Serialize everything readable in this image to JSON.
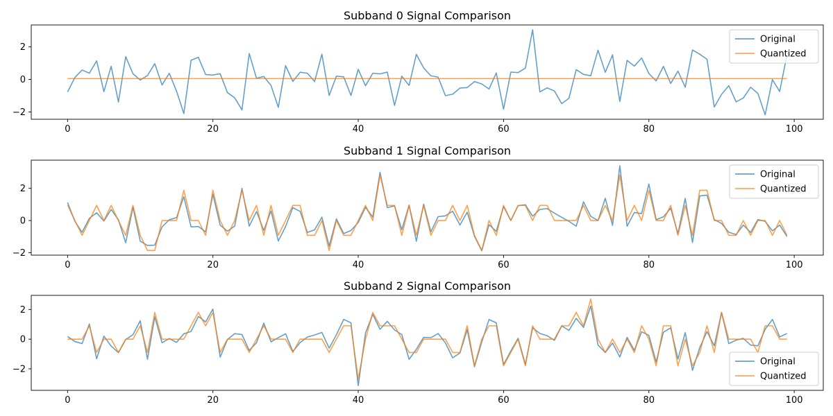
{
  "colors": {
    "original": "#1f77b4",
    "quantized": "#ff7f0e"
  },
  "chart_data": [
    {
      "type": "line",
      "title": "Subband 0 Signal Comparison",
      "xlabel": "",
      "ylabel": "",
      "xlim": [
        -5,
        104
      ],
      "ylim": [
        -2.45,
        3.35
      ],
      "xticks": [
        0,
        20,
        40,
        60,
        80,
        100
      ],
      "yticks": [
        -2,
        0,
        2
      ],
      "legend": "upper right",
      "series": [
        {
          "name": "Original",
          "values": [
            -0.77,
            0.11,
            0.58,
            0.38,
            1.14,
            -0.75,
            0.81,
            -1.39,
            1.4,
            0.35,
            -0.04,
            0.24,
            0.97,
            -0.34,
            0.38,
            -0.73,
            -2.1,
            1.18,
            1.36,
            0.3,
            0.27,
            0.35,
            -0.81,
            -1.13,
            -1.87,
            1.59,
            0.07,
            0.18,
            -0.37,
            -1.72,
            0.85,
            -0.12,
            0.44,
            0.38,
            -0.13,
            1.55,
            -0.99,
            0.2,
            0.16,
            -0.99,
            0.62,
            -0.39,
            0.38,
            0.34,
            0.45,
            -1.6,
            0.2,
            -0.37,
            1.54,
            0.71,
            0.22,
            0.14,
            -1.0,
            -0.91,
            -0.53,
            -0.5,
            -0.13,
            -0.28,
            -0.59,
            0.4,
            -1.83,
            0.45,
            0.42,
            0.69,
            3.05,
            -0.77,
            -0.52,
            -0.71,
            -1.49,
            -1.16,
            0.6,
            0.31,
            0.23,
            1.8,
            0.44,
            1.51,
            -1.36,
            1.17,
            0.82,
            1.32,
            0.36,
            -0.09,
            0.8,
            -0.25,
            0.51,
            -0.48,
            1.81,
            1.55,
            1.24,
            -1.7,
            -0.92,
            -0.38,
            -1.38,
            -1.14,
            -0.48,
            -0.86,
            -2.18,
            -0.01,
            -0.74,
            1.5
          ]
        },
        {
          "name": "Quantized",
          "values": [
            0.05,
            0.05,
            0.05,
            0.05,
            0.05,
            0.05,
            0.05,
            0.05,
            0.05,
            0.05,
            0.05,
            0.05,
            0.05,
            0.05,
            0.05,
            0.05,
            0.05,
            0.05,
            0.05,
            0.05,
            0.05,
            0.05,
            0.05,
            0.05,
            0.05,
            0.05,
            0.05,
            0.05,
            0.05,
            0.05,
            0.05,
            0.05,
            0.05,
            0.05,
            0.05,
            0.05,
            0.05,
            0.05,
            0.05,
            0.05,
            0.05,
            0.05,
            0.05,
            0.05,
            0.05,
            0.05,
            0.05,
            0.05,
            0.05,
            0.05,
            0.05,
            0.05,
            0.05,
            0.05,
            0.05,
            0.05,
            0.05,
            0.05,
            0.05,
            0.05,
            0.05,
            0.05,
            0.05,
            0.05,
            0.05,
            0.05,
            0.05,
            0.05,
            0.05,
            0.05,
            0.05,
            0.05,
            0.05,
            0.05,
            0.05,
            0.05,
            0.05,
            0.05,
            0.05,
            0.05,
            0.05,
            0.05,
            0.05,
            0.05,
            0.05,
            0.05,
            0.05,
            0.05,
            0.05,
            0.05,
            0.05,
            0.05,
            0.05,
            0.05,
            0.05,
            0.05,
            0.05,
            0.05,
            0.05,
            0.05
          ]
        }
      ]
    },
    {
      "type": "line",
      "title": "Subband 1 Signal Comparison",
      "xlabel": "",
      "ylabel": "",
      "xlim": [
        -5,
        104
      ],
      "ylim": [
        -2.15,
        3.75
      ],
      "xticks": [
        0,
        20,
        40,
        60,
        80,
        100
      ],
      "yticks": [
        -2,
        0,
        2
      ],
      "legend": "upper right",
      "series": [
        {
          "name": "Original",
          "values": [
            1.12,
            -0.04,
            -0.73,
            0.14,
            0.48,
            -0.03,
            0.69,
            0.05,
            -1.38,
            0.83,
            -1.28,
            -1.55,
            -1.53,
            -0.4,
            0.05,
            0.18,
            1.48,
            -0.4,
            -0.37,
            -0.7,
            1.63,
            -0.29,
            -0.66,
            -0.35,
            2.0,
            -0.35,
            0.56,
            -0.61,
            0.6,
            -1.27,
            -0.38,
            0.8,
            0.57,
            -0.74,
            -0.58,
            0.21,
            -1.59,
            0.1,
            -0.81,
            -0.62,
            -0.12,
            0.82,
            0.22,
            3.0,
            0.8,
            0.91,
            -0.57,
            0.96,
            -1.29,
            1.02,
            -0.7,
            0.24,
            0.29,
            0.58,
            -0.28,
            0.52,
            -0.98,
            -1.88,
            -0.26,
            -0.67,
            0.87,
            0.0,
            0.92,
            0.98,
            0.27,
            0.69,
            0.74,
            0.46,
            0.2,
            -0.05,
            -0.35,
            1.16,
            0.26,
            0.0,
            1.38,
            -0.3,
            3.4,
            -0.35,
            0.5,
            0.43,
            2.27,
            0.05,
            0.23,
            0.76,
            -0.81,
            1.38,
            -1.36,
            1.53,
            1.58,
            0.06,
            -0.18,
            -0.73,
            -0.87,
            -0.28,
            -0.74,
            0.06,
            -0.05,
            -0.64,
            -0.28,
            -0.99
          ]
        },
        {
          "name": "Quantized",
          "values": [
            0.97,
            0.0,
            -0.92,
            0.0,
            0.94,
            0.0,
            0.94,
            0.0,
            -0.92,
            0.94,
            -0.92,
            -1.86,
            -1.86,
            0.0,
            0.0,
            0.0,
            1.88,
            0.0,
            0.0,
            -0.92,
            1.88,
            0.0,
            -0.92,
            0.0,
            1.88,
            0.0,
            0.94,
            -0.92,
            0.94,
            -0.92,
            0.0,
            0.94,
            0.94,
            -0.92,
            -0.92,
            0.0,
            -1.86,
            0.0,
            -0.92,
            -0.92,
            0.0,
            0.94,
            0.0,
            2.82,
            0.94,
            0.94,
            -0.92,
            0.94,
            -0.92,
            0.94,
            -0.92,
            0.0,
            0.0,
            0.94,
            0.0,
            0.94,
            -0.92,
            -1.86,
            0.0,
            -0.92,
            0.94,
            0.0,
            0.94,
            0.94,
            0.0,
            0.94,
            0.94,
            0.0,
            0.0,
            0.0,
            0.0,
            0.94,
            0.0,
            0.0,
            0.94,
            0.0,
            2.82,
            0.0,
            0.94,
            0.0,
            1.88,
            0.0,
            0.0,
            0.94,
            -0.92,
            0.94,
            -0.92,
            1.88,
            1.88,
            0.0,
            0.0,
            -0.92,
            -0.92,
            0.0,
            -0.92,
            0.0,
            0.0,
            -0.92,
            0.0,
            -0.92
          ]
        }
      ]
    },
    {
      "type": "line",
      "title": "Subband 2 Signal Comparison",
      "xlabel": "",
      "ylabel": "",
      "xlim": [
        -5,
        104
      ],
      "ylim": [
        -3.45,
        2.95
      ],
      "xticks": [
        0,
        20,
        40,
        60,
        80,
        100
      ],
      "yticks": [
        -2,
        0,
        2
      ],
      "legend": "lower right",
      "series": [
        {
          "name": "Original",
          "values": [
            0.18,
            -0.16,
            -0.3,
            1.02,
            -1.32,
            0.2,
            -0.47,
            -0.91,
            -0.03,
            0.3,
            1.24,
            -1.35,
            1.5,
            -0.24,
            0.04,
            -0.22,
            0.36,
            0.52,
            1.53,
            1.16,
            2.03,
            -1.21,
            -0.03,
            0.37,
            0.31,
            -0.76,
            -0.24,
            1.08,
            -0.18,
            0.1,
            0.36,
            -0.83,
            -0.23,
            0.14,
            0.28,
            0.45,
            -0.61,
            0.3,
            1.33,
            1.1,
            -3.13,
            0.42,
            1.67,
            0.66,
            1.2,
            0.62,
            0.3,
            -1.36,
            -0.68,
            0.12,
            0.1,
            0.38,
            -0.25,
            -1.26,
            -0.93,
            0.64,
            -1.86,
            -0.19,
            1.32,
            1.1,
            -1.71,
            -0.8,
            0.06,
            -1.7,
            0.76,
            0.38,
            0.23,
            -0.08,
            0.89,
            0.59,
            1.4,
            0.79,
            2.23,
            -0.4,
            -0.9,
            -0.26,
            -1.2,
            0.12,
            -0.75,
            0.5,
            0.25,
            -1.54,
            0.47,
            0.76,
            -1.34,
            0.44,
            -2.1,
            -0.57,
            0.51,
            -0.45,
            1.8,
            -0.3,
            -0.07,
            0.05,
            -0.4,
            -0.45,
            0.66,
            1.33,
            0.15,
            0.38
          ]
        },
        {
          "name": "Quantized",
          "values": [
            0.0,
            0.0,
            0.0,
            0.9,
            -0.9,
            0.0,
            0.0,
            -0.9,
            0.0,
            0.0,
            0.9,
            -0.9,
            1.8,
            0.0,
            0.0,
            0.0,
            0.0,
            0.9,
            1.8,
            0.9,
            1.8,
            -0.9,
            0.0,
            0.0,
            0.0,
            -0.9,
            0.0,
            0.9,
            0.0,
            0.0,
            0.0,
            -0.9,
            0.0,
            0.0,
            0.0,
            0.0,
            -0.9,
            0.0,
            0.9,
            0.9,
            -2.7,
            0.0,
            1.8,
            0.9,
            0.9,
            0.9,
            0.0,
            -0.9,
            -0.9,
            0.0,
            0.0,
            0.0,
            0.0,
            -0.9,
            -0.9,
            0.9,
            -1.8,
            0.0,
            0.9,
            0.9,
            -1.8,
            -0.9,
            0.0,
            -1.8,
            0.9,
            0.0,
            0.0,
            0.0,
            0.9,
            0.9,
            1.8,
            0.9,
            2.7,
            0.0,
            -0.9,
            0.0,
            -0.9,
            0.0,
            -0.9,
            0.9,
            0.0,
            -1.8,
            0.9,
            0.9,
            -1.8,
            0.0,
            -1.8,
            -0.9,
            0.9,
            -0.9,
            1.8,
            0.0,
            0.0,
            0.0,
            0.0,
            -0.9,
            0.9,
            0.9,
            0.0,
            0.0
          ]
        }
      ]
    }
  ]
}
